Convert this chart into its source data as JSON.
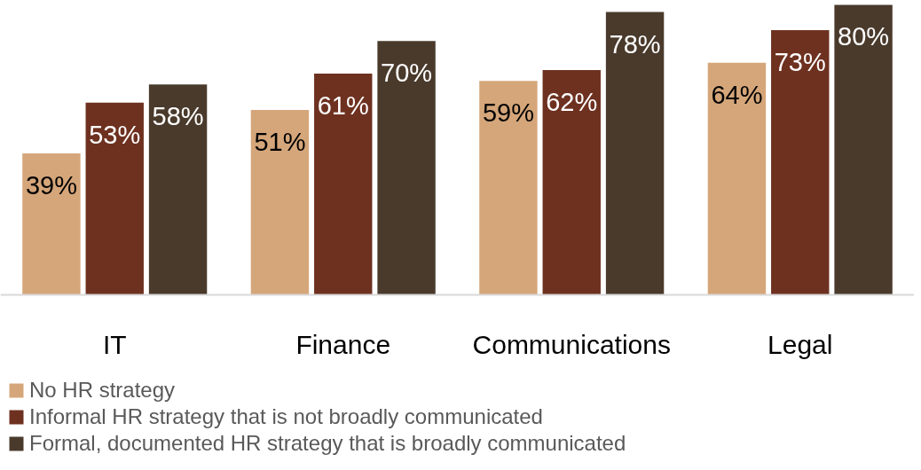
{
  "chart_data": {
    "type": "bar",
    "categories": [
      "IT",
      "Finance",
      "Communications",
      "Legal"
    ],
    "series": [
      {
        "name": "No HR strategy",
        "color": "#d5a67a",
        "values": [
          39,
          51,
          59,
          64
        ],
        "value_labels": [
          "39%",
          "51%",
          "59%",
          "64%"
        ]
      },
      {
        "name": "Informal HR strategy that is not broadly communicated",
        "color": "#6e3120",
        "values": [
          53,
          61,
          62,
          73
        ],
        "value_labels": [
          "53%",
          "61%",
          "62%",
          "73%"
        ]
      },
      {
        "name": "Formal, documented HR strategy that is broadly communicated",
        "color": "#4a3a2c",
        "values": [
          58,
          70,
          78,
          80
        ],
        "value_labels": [
          "58%",
          "70%",
          "78%",
          "80%"
        ]
      }
    ],
    "legend": "bottom left"
  }
}
